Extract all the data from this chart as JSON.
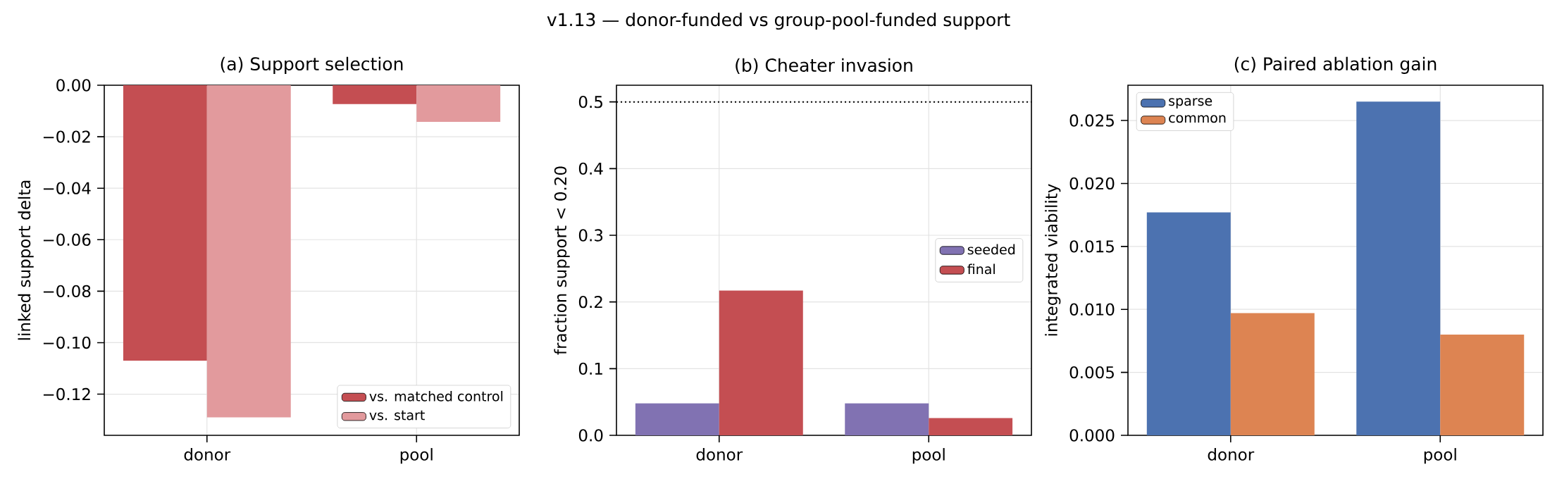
{
  "chart_data": [
    {
      "type": "bar",
      "title": "(a) Support selection",
      "ylabel": "linked support delta",
      "categories": [
        "donor",
        "pool"
      ],
      "series": [
        {
          "name": "vs. matched control",
          "color": "#c44e52",
          "values": [
            -0.107,
            -0.0073
          ]
        },
        {
          "name": "vs. start",
          "color": "#e29a9d",
          "values": [
            -0.129,
            -0.0142
          ]
        }
      ],
      "ylim": [
        -0.136,
        0
      ],
      "yticks": [
        {
          "value": 0,
          "label": "0.00"
        },
        {
          "value": -0.02,
          "label": "−0.02"
        },
        {
          "value": -0.04,
          "label": "−0.04"
        },
        {
          "value": -0.06,
          "label": "−0.06"
        },
        {
          "value": -0.08,
          "label": "−0.08"
        },
        {
          "value": -0.1,
          "label": "−0.10"
        },
        {
          "value": -0.12,
          "label": "−0.12"
        }
      ],
      "grid": true,
      "legend": "bottom right",
      "annotations": [
        "v1.13 — donor-funded vs group-pool-funded support"
      ]
    },
    {
      "type": "bar",
      "title": "(b) Cheater invasion",
      "ylabel": "fraction support < 0.20",
      "categories": [
        "donor",
        "pool"
      ],
      "series": [
        {
          "name": "seeded",
          "color": "#8172b2",
          "values": [
            0.048,
            0.048
          ]
        },
        {
          "name": "final",
          "color": "#c44e52",
          "values": [
            0.217,
            0.026
          ]
        }
      ],
      "ylim": [
        0,
        0.525
      ],
      "yticks": [
        {
          "value": 0,
          "label": "0.0"
        },
        {
          "value": 0.1,
          "label": "0.1"
        },
        {
          "value": 0.2,
          "label": "0.2"
        },
        {
          "value": 0.3,
          "label": "0.3"
        },
        {
          "value": 0.4,
          "label": "0.4"
        },
        {
          "value": 0.5,
          "label": "0.5"
        }
      ],
      "ref_lines": [
        {
          "axis": "y",
          "value": 0.5,
          "color": "#000000",
          "line_style": "dotted"
        }
      ],
      "grid": true,
      "legend": "right"
    },
    {
      "type": "bar",
      "title": "(c) Paired ablation gain",
      "ylabel": "integrated viability",
      "categories": [
        "donor",
        "pool"
      ],
      "series": [
        {
          "name": "sparse",
          "color": "#4c72b0",
          "values": [
            0.0177,
            0.0265
          ]
        },
        {
          "name": "common",
          "color": "#dd8452",
          "values": [
            0.0097,
            0.008
          ]
        }
      ],
      "ylim": [
        0,
        0.0278
      ],
      "yticks": [
        {
          "value": 0,
          "label": "0.000"
        },
        {
          "value": 0.005,
          "label": "0.005"
        },
        {
          "value": 0.01,
          "label": "0.010"
        },
        {
          "value": 0.015,
          "label": "0.015"
        },
        {
          "value": 0.02,
          "label": "0.020"
        },
        {
          "value": 0.025,
          "label": "0.025"
        }
      ],
      "grid": true,
      "legend": "top left"
    }
  ]
}
